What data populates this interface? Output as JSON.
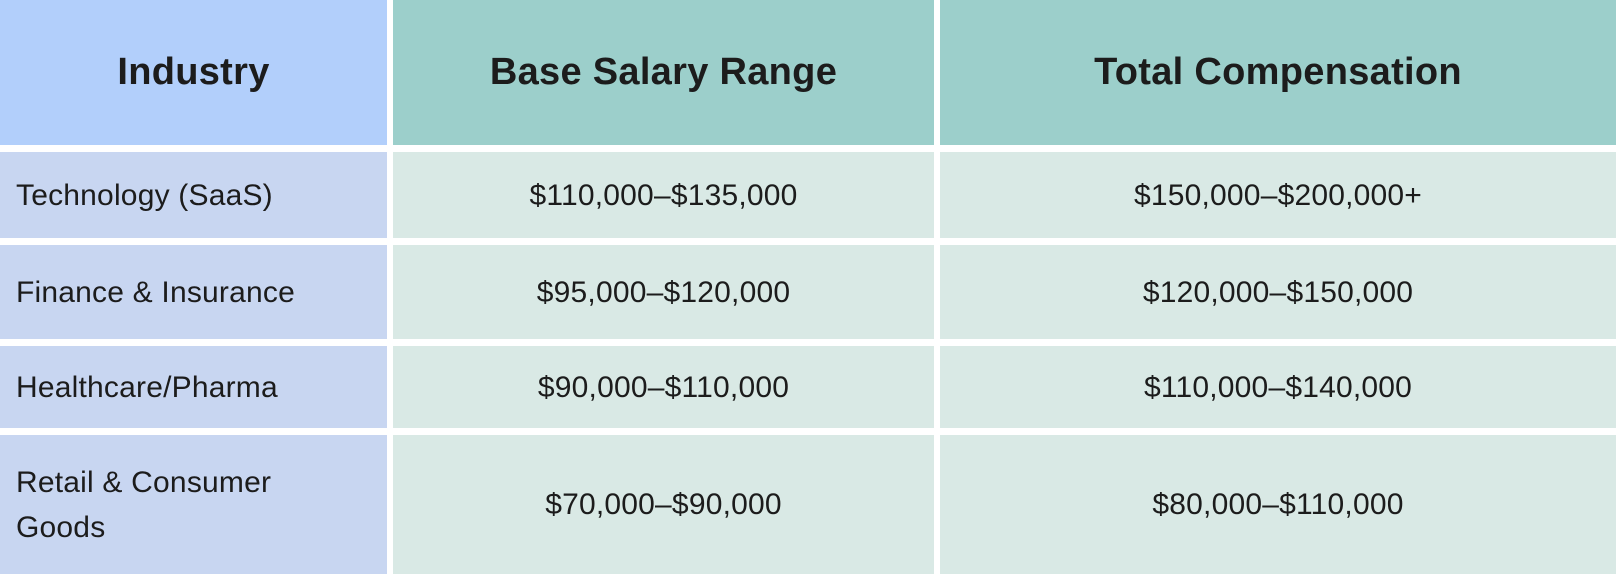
{
  "header": {
    "industry": "Industry",
    "base": "Base Salary Range",
    "total": "Total Compensation"
  },
  "rows": [
    {
      "industry": "Technology (SaaS)",
      "base": "$110,000–$135,000",
      "total": "$150,000–$200,000+"
    },
    {
      "industry": "Finance & Insurance",
      "base": "$95,000–$120,000",
      "total": "$120,000–$150,000"
    },
    {
      "industry": "Healthcare/Pharma",
      "base": "$90,000–$110,000",
      "total": "$110,000–$140,000"
    },
    {
      "industry": "Retail & Consumer Goods",
      "base": "$70,000–$90,000",
      "total": "$80,000–$110,000"
    }
  ],
  "colors": {
    "header_blue": "#b2cffb",
    "cell_blue": "#c8d6f1",
    "header_teal": "#9ccfcb",
    "cell_mint": "#d9e9e5",
    "text": "#1c1c1c",
    "gap": "#ffffff"
  },
  "chart_data": {
    "type": "table",
    "columns": [
      "Industry",
      "Base Salary Range",
      "Total Compensation"
    ],
    "rows": [
      [
        "Technology (SaaS)",
        "$110,000–$135,000",
        "$150,000–$200,000+"
      ],
      [
        "Finance & Insurance",
        "$95,000–$120,000",
        "$120,000–$150,000"
      ],
      [
        "Healthcare/Pharma",
        "$90,000–$110,000",
        "$110,000–$140,000"
      ],
      [
        "Retail & Consumer Goods",
        "$70,000–$90,000",
        "$80,000–$110,000"
      ]
    ]
  }
}
